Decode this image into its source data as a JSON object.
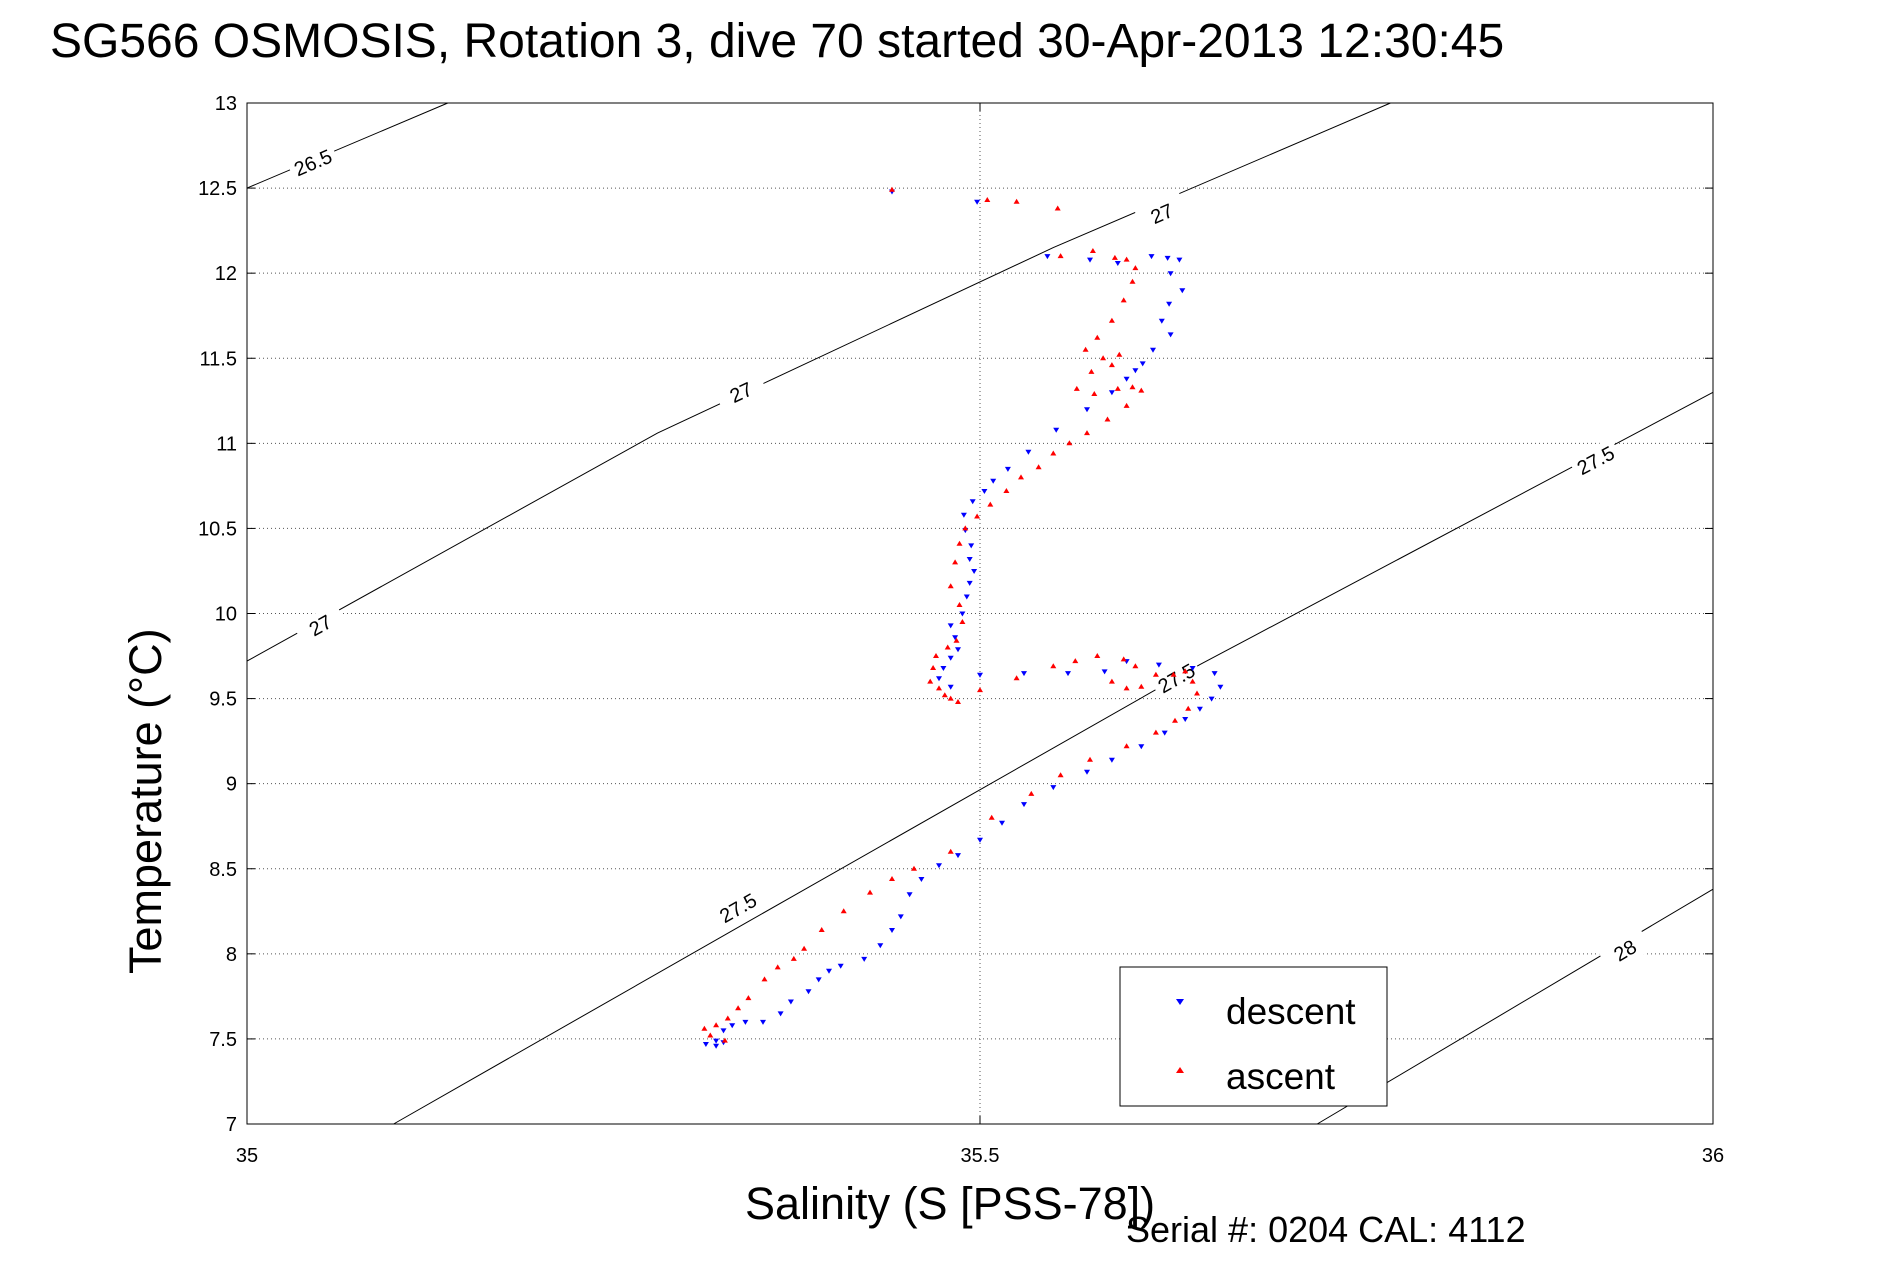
{
  "chart_data": {
    "type": "scatter",
    "title": "SG566 OSMOSIS, Rotation 3, dive 70 started 30-Apr-2013 12:30:45",
    "xlabel": "Salinity (S [PSS-78])",
    "ylabel": "Temperature (°C)",
    "footer": "Serial #: 0204  CAL: 4112",
    "xlim": [
      35,
      36
    ],
    "ylim": [
      7,
      13
    ],
    "xticks": [
      "35",
      "35.5",
      "36"
    ],
    "yticks": [
      "7",
      "7.5",
      "8",
      "8.5",
      "9",
      "9.5",
      "10",
      "10.5",
      "11",
      "11.5",
      "12",
      "12.5",
      "13"
    ],
    "grid": true,
    "legend_position": "bottom-right",
    "colors": {
      "descent": "#0000ff",
      "ascent": "#ff0000",
      "contour": "#000000"
    },
    "contours": [
      {
        "label": "26.5",
        "points": [
          [
            35.0,
            12.5
          ],
          [
            35.137,
            13.0
          ]
        ],
        "labels_at": [
          [
            35.045,
            12.65
          ]
        ]
      },
      {
        "label": "27",
        "points": [
          [
            35.0,
            9.72
          ],
          [
            35.28,
            11.06
          ],
          [
            35.55,
            12.15
          ],
          [
            35.78,
            13.0
          ]
        ],
        "labels_at": [
          [
            35.05,
            9.93
          ],
          [
            35.337,
            11.3
          ],
          [
            35.624,
            12.35
          ]
        ]
      },
      {
        "label": "27.5",
        "points": [
          [
            35.1,
            7.0
          ],
          [
            35.34,
            8.18
          ],
          [
            35.65,
            9.7
          ],
          [
            36.0,
            11.3
          ]
        ],
        "labels_at": [
          [
            35.335,
            8.27
          ],
          [
            35.634,
            9.62
          ],
          [
            35.92,
            10.9
          ]
        ]
      },
      {
        "label": "28",
        "points": [
          [
            35.73,
            7.0
          ],
          [
            36.0,
            8.38
          ]
        ],
        "labels_at": [
          [
            35.94,
            8.02
          ]
        ]
      }
    ],
    "series": [
      {
        "name": "descent",
        "marker": "triangle-down",
        "x": [
          35.44,
          35.498,
          35.546,
          35.575,
          35.594,
          35.617,
          35.628,
          35.636,
          35.63,
          35.638,
          35.629,
          35.624,
          35.63,
          35.618,
          35.611,
          35.606,
          35.6,
          35.59,
          35.573,
          35.552,
          35.533,
          35.519,
          35.509,
          35.503,
          35.495,
          35.489,
          35.49,
          35.494,
          35.493,
          35.496,
          35.493,
          35.491,
          35.488,
          35.48,
          35.483,
          35.485,
          35.48,
          35.475,
          35.472,
          35.48,
          35.5,
          35.53,
          35.56,
          35.585,
          35.6,
          35.622,
          35.645,
          35.66,
          35.664,
          35.658,
          35.65,
          35.64,
          35.626,
          35.61,
          35.59,
          35.573,
          35.55,
          35.53,
          35.515,
          35.5,
          35.485,
          35.472,
          35.46,
          35.452,
          35.446,
          35.44,
          35.432,
          35.421,
          35.405,
          35.397,
          35.39,
          35.383,
          35.371,
          35.364,
          35.352,
          35.34,
          35.331,
          35.325,
          35.32,
          35.313,
          35.32,
          35.325
        ],
        "y": [
          12.48,
          12.42,
          12.1,
          12.08,
          12.06,
          12.1,
          12.09,
          12.08,
          12.0,
          11.9,
          11.82,
          11.72,
          11.64,
          11.55,
          11.47,
          11.43,
          11.38,
          11.3,
          11.2,
          11.08,
          10.95,
          10.85,
          10.78,
          10.72,
          10.66,
          10.58,
          10.49,
          10.4,
          10.32,
          10.25,
          10.18,
          10.1,
          10.0,
          9.93,
          9.86,
          9.79,
          9.74,
          9.68,
          9.62,
          9.57,
          9.64,
          9.65,
          9.65,
          9.66,
          9.72,
          9.7,
          9.68,
          9.65,
          9.57,
          9.5,
          9.44,
          9.38,
          9.3,
          9.22,
          9.14,
          9.07,
          8.98,
          8.88,
          8.77,
          8.67,
          8.58,
          8.52,
          8.44,
          8.35,
          8.22,
          8.14,
          8.05,
          7.97,
          7.93,
          7.9,
          7.85,
          7.78,
          7.72,
          7.65,
          7.6,
          7.6,
          7.58,
          7.55,
          7.49,
          7.47,
          7.46,
          7.48
        ]
      },
      {
        "name": "ascent",
        "marker": "triangle-up",
        "x": [
          35.44,
          35.505,
          35.525,
          35.553,
          35.555,
          35.577,
          35.592,
          35.6,
          35.606,
          35.604,
          35.598,
          35.59,
          35.58,
          35.572,
          35.584,
          35.595,
          35.59,
          35.576,
          35.566,
          35.578,
          35.594,
          35.604,
          35.61,
          35.6,
          35.587,
          35.573,
          35.561,
          35.55,
          35.54,
          35.528,
          35.518,
          35.507,
          35.498,
          35.49,
          35.486,
          35.483,
          35.48,
          35.486,
          35.488,
          35.484,
          35.478,
          35.47,
          35.468,
          35.466,
          35.472,
          35.476,
          35.48,
          35.485,
          35.5,
          35.525,
          35.55,
          35.565,
          35.58,
          35.598,
          35.606,
          35.59,
          35.6,
          35.61,
          35.62,
          35.632,
          35.64,
          35.645,
          35.648,
          35.642,
          35.633,
          35.62,
          35.6,
          35.575,
          35.555,
          35.535,
          35.508,
          35.48,
          35.455,
          35.44,
          35.425,
          35.407,
          35.392,
          35.38,
          35.373,
          35.362,
          35.353,
          35.342,
          35.335,
          35.328,
          35.32,
          35.312,
          35.316,
          35.326
        ],
        "y": [
          12.49,
          12.43,
          12.42,
          12.38,
          12.1,
          12.13,
          12.09,
          12.08,
          12.03,
          11.95,
          11.84,
          11.72,
          11.62,
          11.55,
          11.5,
          11.52,
          11.46,
          11.42,
          11.32,
          11.29,
          11.32,
          11.33,
          11.31,
          11.22,
          11.14,
          11.06,
          11.0,
          10.94,
          10.86,
          10.8,
          10.72,
          10.64,
          10.57,
          10.5,
          10.41,
          10.3,
          10.16,
          10.05,
          9.95,
          9.84,
          9.8,
          9.75,
          9.68,
          9.6,
          9.56,
          9.52,
          9.5,
          9.48,
          9.55,
          9.62,
          9.69,
          9.72,
          9.75,
          9.73,
          9.69,
          9.6,
          9.56,
          9.57,
          9.64,
          9.64,
          9.66,
          9.6,
          9.53,
          9.44,
          9.37,
          9.3,
          9.22,
          9.14,
          9.05,
          8.94,
          8.8,
          8.6,
          8.5,
          8.44,
          8.36,
          8.25,
          8.14,
          8.03,
          7.97,
          7.92,
          7.85,
          7.74,
          7.68,
          7.62,
          7.58,
          7.56,
          7.52,
          7.49
        ]
      }
    ]
  }
}
